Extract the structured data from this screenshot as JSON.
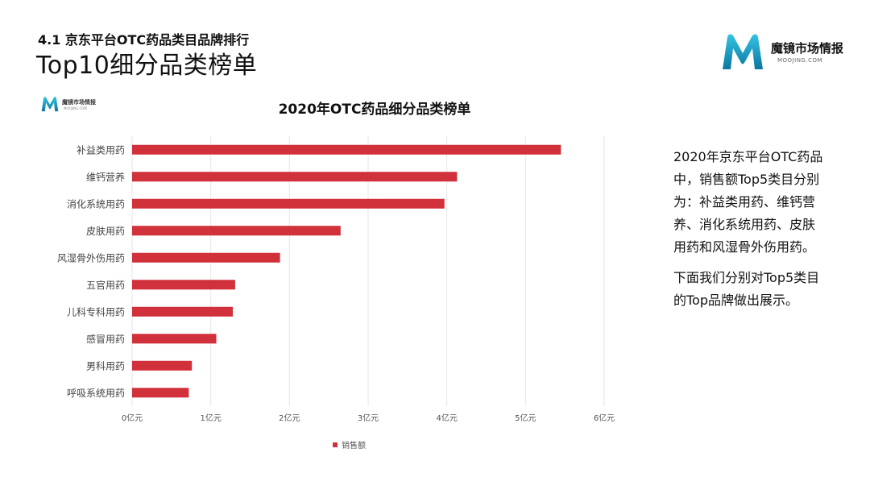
{
  "header": {
    "section_label": "4.1 京东平台OTC药品类目品牌排行",
    "title": "Top10细分品类榜单"
  },
  "brand": {
    "name": "魔镜市场情报",
    "url": "MOOJING.COM",
    "colors": {
      "primary": "#1aa3c8",
      "secondary": "#0e7fa8"
    }
  },
  "chart_logo": {
    "name": "魔镜市场情报",
    "url": "MOOJING.COM"
  },
  "chart_data": {
    "type": "bar",
    "orientation": "horizontal",
    "title": "2020年OTC药品细分品类榜单",
    "categories": [
      "补益类用药",
      "维钙营养",
      "消化系统用药",
      "皮肤用药",
      "风湿骨外伤用药",
      "五官用药",
      "儿科专科用药",
      "感冒用药",
      "男科用药",
      "呼吸系统用药"
    ],
    "series": [
      {
        "name": "销售额",
        "color": "#d0313a",
        "values": [
          5.45,
          4.13,
          3.97,
          2.65,
          1.88,
          1.31,
          1.28,
          1.07,
          0.76,
          0.72
        ]
      }
    ],
    "x_ticks": [
      "0亿元",
      "1亿元",
      "2亿元",
      "3亿元",
      "4亿元",
      "5亿元",
      "6亿元"
    ],
    "xlim": [
      0,
      6
    ],
    "grid": "vertical",
    "legend": "bottom"
  },
  "side_text": {
    "paragraph1": "2020年京东平台OTC药品中，销售额Top5类目分别为：补益类用药、维钙营养、消化系统用药、皮肤用药和风湿骨外伤用药。",
    "paragraph2": "下面我们分别对Top5类目的Top品牌做出展示。"
  }
}
